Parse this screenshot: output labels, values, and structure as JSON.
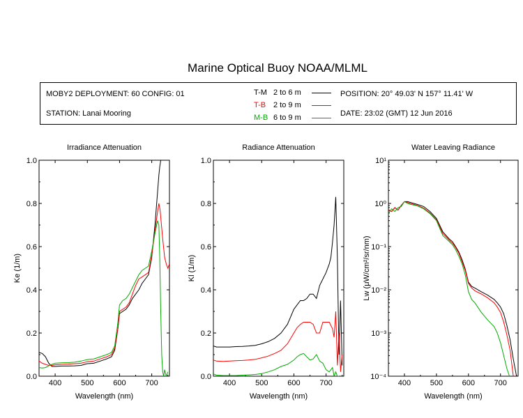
{
  "title": "Marine Optical Buoy NOAA/MLML",
  "info": {
    "deployment": "MOBY2 DEPLOYMENT: 60 CONFIG: 01",
    "station": "STATION: Lanai Mooring",
    "position": "POSITION: 20° 49.03' N   157° 11.41' W",
    "date": "DATE: 23:02 (GMT) 12 Jun 2016",
    "legend": [
      {
        "code": "T-M",
        "depth": "2 to 6  m",
        "color": "#000000"
      },
      {
        "code": "T-B",
        "depth": "2 to 9  m",
        "color": "#ff0000"
      },
      {
        "code": "M-B",
        "depth": "6 to 9  m",
        "color": "#00aa00"
      }
    ]
  },
  "chart_data": [
    {
      "type": "line",
      "title": "Irradiance Attenuation",
      "xlabel": "Wavelength (nm)",
      "ylabel": "Ke  (1/m)",
      "xlim": [
        350,
        755
      ],
      "ylim": [
        0,
        1
      ],
      "xticks": [
        400,
        500,
        600,
        700
      ],
      "yticks": [
        "0.0",
        "0.2",
        "0.4",
        "0.6",
        "0.8",
        "1.0"
      ],
      "series": [
        {
          "name": "T-M",
          "color": "#000000",
          "x": [
            350,
            360,
            370,
            380,
            390,
            400,
            420,
            440,
            460,
            480,
            500,
            520,
            540,
            560,
            575,
            585,
            595,
            600,
            610,
            620,
            630,
            640,
            650,
            660,
            670,
            680,
            690,
            700,
            710,
            718,
            722,
            725,
            728
          ],
          "y": [
            0.11,
            0.105,
            0.09,
            0.06,
            0.045,
            0.045,
            0.047,
            0.047,
            0.048,
            0.05,
            0.058,
            0.06,
            0.07,
            0.08,
            0.09,
            0.12,
            0.22,
            0.29,
            0.3,
            0.31,
            0.33,
            0.36,
            0.38,
            0.4,
            0.43,
            0.45,
            0.47,
            0.55,
            0.7,
            0.85,
            0.93,
            0.97,
            1.0
          ]
        },
        {
          "name": "T-B",
          "color": "#ff0000",
          "x": [
            350,
            360,
            370,
            380,
            390,
            400,
            420,
            440,
            460,
            480,
            500,
            520,
            540,
            560,
            575,
            585,
            595,
            600,
            610,
            620,
            630,
            640,
            650,
            660,
            670,
            680,
            690,
            700,
            710,
            718,
            722,
            726,
            730,
            735,
            740,
            745,
            750,
            755
          ],
          "y": [
            0.07,
            0.06,
            0.055,
            0.05,
            0.05,
            0.053,
            0.055,
            0.056,
            0.058,
            0.06,
            0.067,
            0.07,
            0.08,
            0.09,
            0.1,
            0.13,
            0.22,
            0.3,
            0.31,
            0.32,
            0.34,
            0.38,
            0.42,
            0.45,
            0.46,
            0.47,
            0.48,
            0.56,
            0.67,
            0.76,
            0.8,
            0.77,
            0.7,
            0.62,
            0.55,
            0.52,
            0.5,
            0.52
          ]
        },
        {
          "name": "M-B",
          "color": "#00aa00",
          "x": [
            350,
            360,
            370,
            380,
            390,
            400,
            420,
            440,
            460,
            480,
            500,
            520,
            540,
            560,
            575,
            585,
            595,
            600,
            610,
            620,
            630,
            640,
            650,
            660,
            670,
            680,
            690,
            700,
            710,
            718,
            722,
            725,
            728,
            731,
            734,
            737,
            740,
            745,
            750
          ],
          "y": [
            0.04,
            0.038,
            0.04,
            0.048,
            0.055,
            0.06,
            0.062,
            0.063,
            0.065,
            0.07,
            0.077,
            0.08,
            0.09,
            0.1,
            0.11,
            0.14,
            0.25,
            0.33,
            0.35,
            0.36,
            0.38,
            0.41,
            0.44,
            0.47,
            0.49,
            0.5,
            0.51,
            0.58,
            0.66,
            0.72,
            0.7,
            0.55,
            0.3,
            0.1,
            0.02,
            0.0,
            0.03,
            0.0,
            0.02
          ]
        }
      ]
    },
    {
      "type": "line",
      "title": "Radiance Attenuation",
      "xlabel": "Wavelength (nm)",
      "ylabel": "Kl  (1/m)",
      "xlim": [
        350,
        755
      ],
      "ylim": [
        0,
        1
      ],
      "xticks": [
        400,
        500,
        600,
        700
      ],
      "yticks": [
        "0.0",
        "0.2",
        "0.4",
        "0.6",
        "0.8",
        "1.0"
      ],
      "series": [
        {
          "name": "T-M",
          "color": "#000000",
          "x": [
            350,
            360,
            380,
            400,
            420,
            440,
            460,
            480,
            500,
            520,
            540,
            560,
            580,
            600,
            610,
            620,
            630,
            640,
            650,
            660,
            670,
            680,
            690,
            700,
            710,
            715,
            720,
            725,
            730,
            735,
            740,
            745,
            750
          ],
          "y": [
            0.14,
            0.135,
            0.135,
            0.135,
            0.137,
            0.138,
            0.14,
            0.143,
            0.15,
            0.16,
            0.175,
            0.2,
            0.24,
            0.31,
            0.33,
            0.35,
            0.35,
            0.36,
            0.38,
            0.38,
            0.36,
            0.42,
            0.45,
            0.48,
            0.52,
            0.55,
            0.62,
            0.7,
            0.83,
            0.55,
            0.1,
            0.35,
            0.05
          ]
        },
        {
          "name": "T-B",
          "color": "#ff0000",
          "x": [
            350,
            360,
            380,
            400,
            420,
            440,
            460,
            480,
            500,
            520,
            540,
            560,
            580,
            600,
            610,
            620,
            630,
            640,
            650,
            660,
            670,
            680,
            690,
            700,
            710,
            720,
            725,
            730,
            735,
            740,
            745,
            750
          ],
          "y": [
            0.075,
            0.07,
            0.068,
            0.07,
            0.072,
            0.073,
            0.075,
            0.078,
            0.085,
            0.093,
            0.105,
            0.12,
            0.15,
            0.2,
            0.225,
            0.24,
            0.25,
            0.25,
            0.25,
            0.24,
            0.2,
            0.2,
            0.25,
            0.25,
            0.25,
            0.22,
            0.18,
            0.3,
            0.05,
            0.2,
            0.02,
            0.1
          ]
        },
        {
          "name": "M-B",
          "color": "#00aa00",
          "x": [
            350,
            360,
            380,
            400,
            420,
            440,
            460,
            480,
            500,
            520,
            540,
            560,
            580,
            600,
            610,
            620,
            630,
            640,
            650,
            660,
            670,
            680,
            690,
            700,
            710,
            720,
            725,
            730,
            735,
            740
          ],
          "y": [
            0.01,
            0.005,
            0.003,
            0.003,
            0.003,
            0.005,
            0.006,
            0.008,
            0.012,
            0.02,
            0.03,
            0.045,
            0.055,
            0.075,
            0.09,
            0.1,
            0.105,
            0.09,
            0.075,
            0.08,
            0.1,
            0.07,
            0.06,
            0.03,
            0.02,
            0.04,
            0.0,
            0.02,
            0.0,
            0.0
          ]
        }
      ]
    },
    {
      "type": "line",
      "title": "Water Leaving Radiance",
      "xlabel": "Wavelength (nm)",
      "ylabel": "Lw  (μW/cm²/sr/nm)",
      "scale": "log",
      "xlim": [
        350,
        755
      ],
      "ylim": [
        0.0001,
        10
      ],
      "xticks": [
        400,
        500,
        600,
        700
      ],
      "yticks": [
        "10⁻⁴",
        "10⁻³",
        "10⁻²",
        "10⁻¹",
        "10⁰",
        "10¹"
      ],
      "series": [
        {
          "name": "T-M",
          "color": "#000000",
          "x": [
            350,
            360,
            370,
            380,
            390,
            400,
            410,
            420,
            440,
            460,
            480,
            500,
            520,
            540,
            550,
            560,
            570,
            580,
            590,
            600,
            610,
            620,
            640,
            660,
            680,
            690,
            700,
            710,
            720,
            730,
            740,
            750
          ],
          "y": [
            0.7,
            0.65,
            0.8,
            0.7,
            0.9,
            1.1,
            1.1,
            1.05,
            0.95,
            0.85,
            0.65,
            0.45,
            0.22,
            0.15,
            0.13,
            0.1,
            0.075,
            0.05,
            0.03,
            0.015,
            0.012,
            0.011,
            0.009,
            0.0075,
            0.006,
            0.005,
            0.004,
            0.0028,
            0.0015,
            0.0007,
            0.00025,
            0.0001
          ]
        },
        {
          "name": "T-B",
          "color": "#ff0000",
          "x": [
            350,
            360,
            370,
            380,
            390,
            400,
            410,
            420,
            440,
            460,
            480,
            500,
            520,
            540,
            550,
            560,
            570,
            580,
            590,
            600,
            610,
            620,
            640,
            660,
            680,
            690,
            700,
            710,
            720,
            730,
            740
          ],
          "y": [
            0.7,
            0.65,
            0.8,
            0.7,
            0.9,
            1.1,
            1.05,
            1.0,
            0.9,
            0.78,
            0.6,
            0.42,
            0.2,
            0.14,
            0.12,
            0.095,
            0.07,
            0.045,
            0.028,
            0.014,
            0.011,
            0.0095,
            0.008,
            0.0065,
            0.005,
            0.004,
            0.003,
            0.0018,
            0.0009,
            0.0004,
            0.0001
          ]
        },
        {
          "name": "M-B",
          "color": "#00aa00",
          "x": [
            350,
            360,
            370,
            380,
            390,
            400,
            410,
            420,
            440,
            460,
            480,
            500,
            520,
            540,
            550,
            560,
            570,
            580,
            590,
            600,
            610,
            620,
            640,
            660,
            680,
            690,
            700,
            710,
            720,
            728
          ],
          "y": [
            0.6,
            0.75,
            0.65,
            0.8,
            0.85,
            1.1,
            1.0,
            0.95,
            0.88,
            0.75,
            0.58,
            0.4,
            0.18,
            0.13,
            0.11,
            0.085,
            0.06,
            0.04,
            0.022,
            0.009,
            0.006,
            0.005,
            0.003,
            0.002,
            0.0014,
            0.001,
            0.0006,
            0.0003,
            0.00015,
            0.0001
          ]
        }
      ]
    }
  ]
}
